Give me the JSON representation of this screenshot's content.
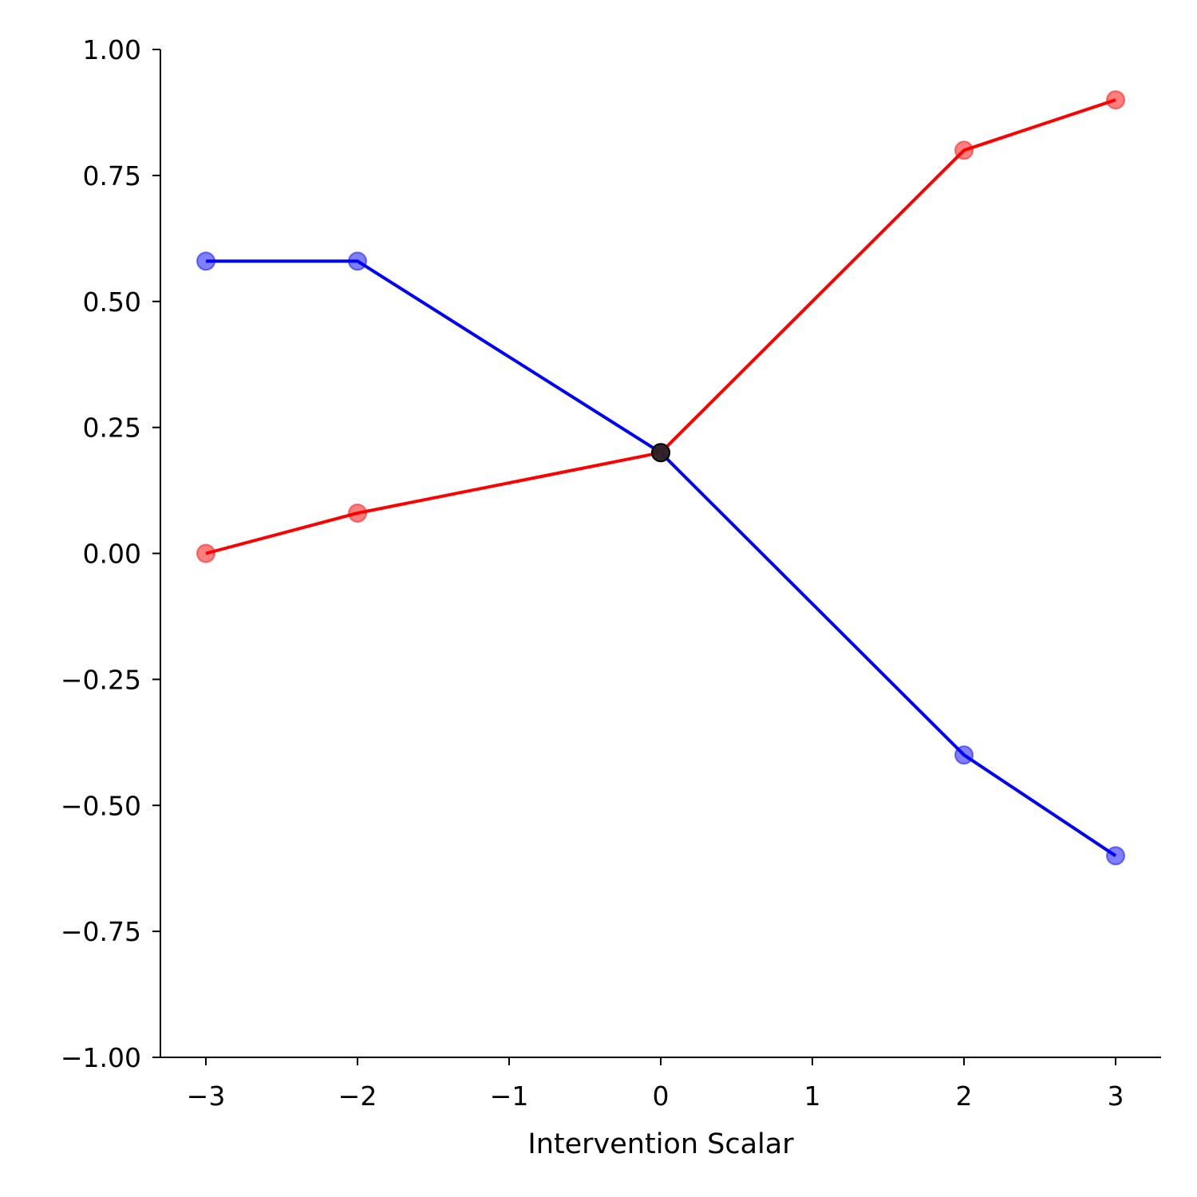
{
  "chart_data": {
    "type": "line",
    "title": "",
    "xlabel": "Intervention Scalar",
    "ylabel": "",
    "xlim": [
      -3.3,
      3.3
    ],
    "ylim": [
      -1.0,
      1.0
    ],
    "x_ticks": [
      -3,
      -2,
      -1,
      0,
      1,
      2,
      3
    ],
    "x_tick_labels": [
      "−3",
      "−2",
      "−1",
      "0",
      "1",
      "2",
      "3"
    ],
    "y_ticks": [
      1.0,
      0.75,
      0.5,
      0.25,
      0.0,
      -0.25,
      -0.5,
      -0.75,
      -1.0
    ],
    "y_tick_labels": [
      "1.00",
      "0.75",
      "0.50",
      "0.25",
      "0.00",
      "−0.25",
      "−0.50",
      "−0.75",
      "−1.00"
    ],
    "grid": false,
    "legend": "none",
    "series": [
      {
        "color": "#0000ff",
        "x": [
          -3,
          -2,
          0,
          2,
          3
        ],
        "y": [
          0.58,
          0.58,
          0.2,
          -0.4,
          -0.6
        ]
      },
      {
        "color": "#ff0000",
        "x": [
          -3,
          -2,
          0,
          2,
          3
        ],
        "y": [
          0.0,
          0.08,
          0.2,
          0.8,
          0.9
        ]
      }
    ],
    "center_point": {
      "x": 0,
      "y": 0.2,
      "color": "#222222"
    }
  }
}
